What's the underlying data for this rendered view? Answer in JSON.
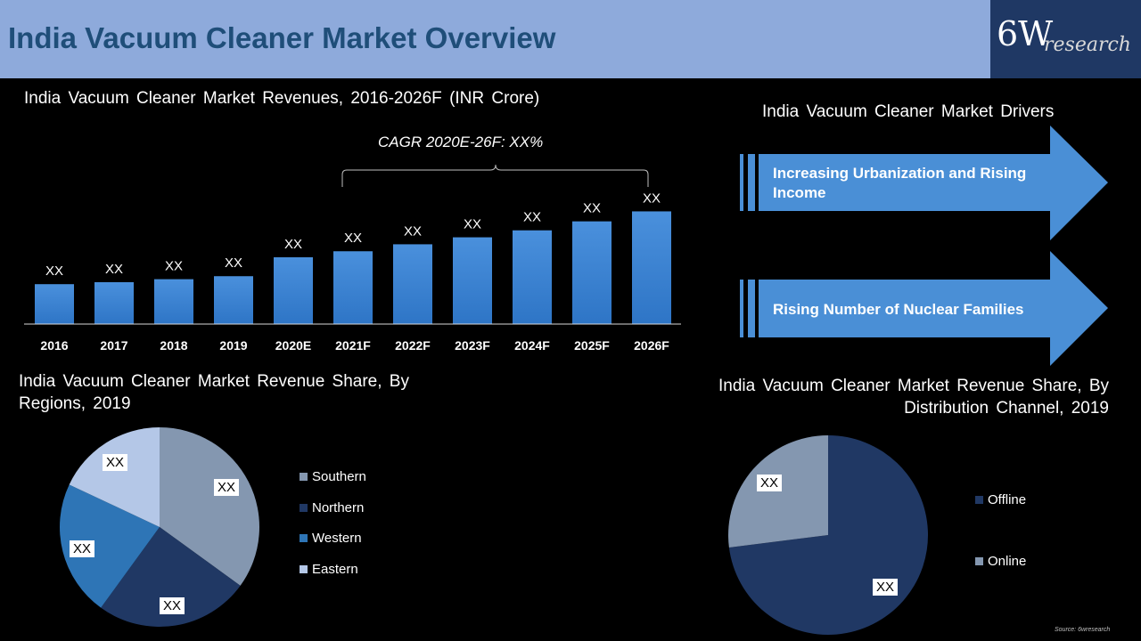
{
  "header": {
    "title": "India Vacuum Cleaner Market Overview"
  },
  "logo": {
    "main": "6W",
    "sub": "research"
  },
  "revenue_section": {
    "title": "India Vacuum Cleaner  Market Revenues, 2016-2026F (INR Crore)",
    "cagr": "CAGR 2020E-26F: XX%"
  },
  "drivers": {
    "title": "India Vacuum Cleaner Market Drivers",
    "items": [
      "Increasing Urbanization and Rising Income",
      "Rising Number of Nuclear Families"
    ]
  },
  "region_section": {
    "title_line1": "India Vacuum Cleaner Market Revenue Share, By",
    "title_line2": "Regions, 2019"
  },
  "channel_section": {
    "title_line1": "India Vacuum Cleaner Market Revenue Share, By",
    "title_line2": "Distribution Channel, 2019"
  },
  "source": "Source: 6wresearch",
  "colors": {
    "header_bg": "#8eaadb",
    "title_text": "#1f4e79",
    "logo_bg": "#1f3864",
    "bar": "#3b86d3",
    "arrow": "#4a8fd6"
  },
  "chart_data": [
    {
      "type": "bar",
      "title": "India Vacuum Cleaner  Market Revenues, 2016-2026F (INR Crore)",
      "categories": [
        "2016",
        "2017",
        "2018",
        "2019",
        "2020E",
        "2021F",
        "2022F",
        "2023F",
        "2024F",
        "2025F",
        "2026F"
      ],
      "values": [
        40,
        42,
        45,
        48,
        67,
        73,
        80,
        87,
        94,
        103,
        113
      ],
      "data_labels": [
        "XX",
        "XX",
        "XX",
        "XX",
        "XX",
        "XX",
        "XX",
        "XX",
        "XX",
        "XX",
        "XX"
      ],
      "ylim": [
        0,
        125
      ],
      "annotation": "CAGR 2020E-26F: XX%",
      "grid": false
    },
    {
      "type": "pie",
      "title": "India Vacuum Cleaner Market Revenue Share, By Regions, 2019",
      "labels": [
        "Southern",
        "Northern",
        "Western",
        "Eastern"
      ],
      "values": [
        35,
        25,
        22,
        18
      ],
      "data_labels": [
        "XX",
        "XX",
        "XX",
        "XX"
      ],
      "colors": [
        "#8497b0",
        "#203864",
        "#2e75b6",
        "#b4c7e7"
      ],
      "legend": "right"
    },
    {
      "type": "pie",
      "title": "India Vacuum Cleaner Market Revenue Share, By Distribution Channel, 2019",
      "labels": [
        "Offline",
        "Online"
      ],
      "values": [
        73,
        27
      ],
      "data_labels": [
        "XX",
        "XX"
      ],
      "colors": [
        "#203864",
        "#8497b0"
      ],
      "legend": "right"
    }
  ]
}
